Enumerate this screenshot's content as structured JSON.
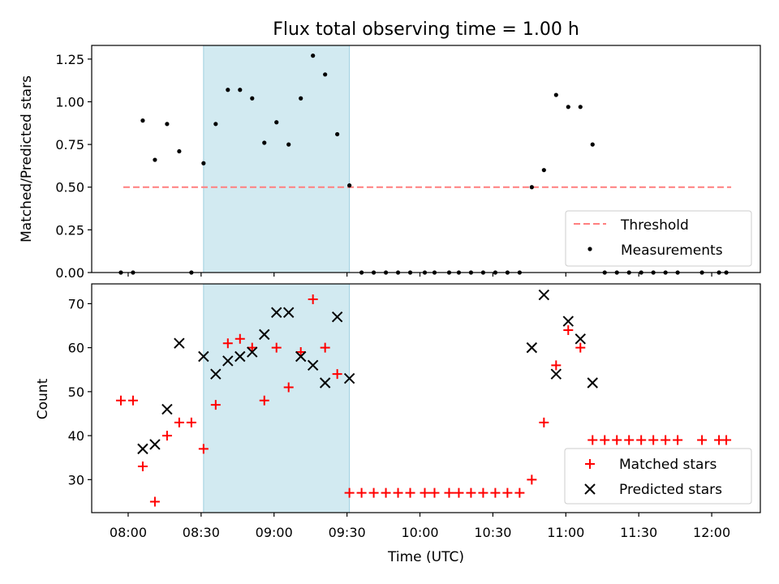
{
  "chart_data": [
    {
      "type": "scatter",
      "title": "Flux total observing time = 1.00 h",
      "xlabel": "",
      "ylabel": "Matched/Predicted stars",
      "ylim": [
        0,
        1.33
      ],
      "yticks": [
        "0.00",
        "0.25",
        "0.50",
        "0.75",
        "1.00",
        "1.25"
      ],
      "xlim": [
        "07:45",
        "12:20"
      ],
      "highlight_span": [
        "08:31",
        "09:31"
      ],
      "highlight_color": "#add8e6",
      "threshold": {
        "name": "Threshold",
        "value": 0.5,
        "from": "07:58",
        "to": "12:08",
        "color": "#ff7f7f"
      },
      "legend_position": "lower right",
      "series": [
        {
          "name": "Measurements",
          "color": "#000000",
          "marker": "dot",
          "points": [
            [
              "07:57",
              0.0
            ],
            [
              "08:02",
              0.0
            ],
            [
              "08:06",
              0.89
            ],
            [
              "08:11",
              0.66
            ],
            [
              "08:16",
              0.87
            ],
            [
              "08:21",
              0.71
            ],
            [
              "08:26",
              0.0
            ],
            [
              "08:31",
              0.64
            ],
            [
              "08:36",
              0.87
            ],
            [
              "08:41",
              1.07
            ],
            [
              "08:46",
              1.07
            ],
            [
              "08:51",
              1.02
            ],
            [
              "08:56",
              0.76
            ],
            [
              "09:01",
              0.88
            ],
            [
              "09:06",
              0.75
            ],
            [
              "09:11",
              1.02
            ],
            [
              "09:16",
              1.27
            ],
            [
              "09:21",
              1.16
            ],
            [
              "09:26",
              0.81
            ],
            [
              "09:31",
              0.51
            ],
            [
              "09:36",
              0.0
            ],
            [
              "09:41",
              0.0
            ],
            [
              "09:46",
              0.0
            ],
            [
              "09:51",
              0.0
            ],
            [
              "09:56",
              0.0
            ],
            [
              "10:02",
              0.0
            ],
            [
              "10:06",
              0.0
            ],
            [
              "10:12",
              0.0
            ],
            [
              "10:16",
              0.0
            ],
            [
              "10:21",
              0.0
            ],
            [
              "10:26",
              0.0
            ],
            [
              "10:31",
              0.0
            ],
            [
              "10:36",
              0.0
            ],
            [
              "10:41",
              0.0
            ],
            [
              "10:46",
              0.5
            ],
            [
              "10:51",
              0.6
            ],
            [
              "10:56",
              1.04
            ],
            [
              "11:01",
              0.97
            ],
            [
              "11:06",
              0.97
            ],
            [
              "11:11",
              0.75
            ],
            [
              "11:16",
              0.0
            ],
            [
              "11:21",
              0.0
            ],
            [
              "11:26",
              0.0
            ],
            [
              "11:31",
              0.0
            ],
            [
              "11:36",
              0.0
            ],
            [
              "11:41",
              0.0
            ],
            [
              "11:46",
              0.0
            ],
            [
              "11:56",
              0.0
            ],
            [
              "12:03",
              0.0
            ],
            [
              "12:06",
              0.0
            ]
          ]
        }
      ],
      "legend": [
        "Threshold",
        "Measurements"
      ]
    },
    {
      "type": "scatter",
      "title": "",
      "xlabel": "Time (UTC)",
      "ylabel": "Count",
      "ylim": [
        22.5,
        74.5
      ],
      "yticks": [
        "30",
        "40",
        "50",
        "60",
        "70"
      ],
      "xlim": [
        "07:45",
        "12:20"
      ],
      "xticks": [
        "08:00",
        "08:30",
        "09:00",
        "09:30",
        "10:00",
        "10:30",
        "11:00",
        "11:30",
        "12:00"
      ],
      "highlight_span": [
        "08:31",
        "09:31"
      ],
      "highlight_color": "#add8e6",
      "legend_position": "lower right",
      "series": [
        {
          "name": "Matched stars",
          "color": "#ff0000",
          "marker": "plus",
          "points": [
            [
              "07:57",
              48
            ],
            [
              "08:02",
              48
            ],
            [
              "08:06",
              33
            ],
            [
              "08:11",
              25
            ],
            [
              "08:16",
              40
            ],
            [
              "08:21",
              43
            ],
            [
              "08:26",
              43
            ],
            [
              "08:31",
              37
            ],
            [
              "08:36",
              47
            ],
            [
              "08:41",
              61
            ],
            [
              "08:46",
              62
            ],
            [
              "08:51",
              60
            ],
            [
              "08:56",
              48
            ],
            [
              "09:01",
              60
            ],
            [
              "09:06",
              51
            ],
            [
              "09:11",
              59
            ],
            [
              "09:16",
              71
            ],
            [
              "09:21",
              60
            ],
            [
              "09:26",
              54
            ],
            [
              "09:31",
              27
            ],
            [
              "09:36",
              27
            ],
            [
              "09:41",
              27
            ],
            [
              "09:46",
              27
            ],
            [
              "09:51",
              27
            ],
            [
              "09:56",
              27
            ],
            [
              "10:02",
              27
            ],
            [
              "10:06",
              27
            ],
            [
              "10:12",
              27
            ],
            [
              "10:16",
              27
            ],
            [
              "10:21",
              27
            ],
            [
              "10:26",
              27
            ],
            [
              "10:31",
              27
            ],
            [
              "10:36",
              27
            ],
            [
              "10:41",
              27
            ],
            [
              "10:46",
              30
            ],
            [
              "10:51",
              43
            ],
            [
              "10:56",
              56
            ],
            [
              "11:01",
              64
            ],
            [
              "11:06",
              60
            ],
            [
              "11:11",
              39
            ],
            [
              "11:16",
              39
            ],
            [
              "11:21",
              39
            ],
            [
              "11:26",
              39
            ],
            [
              "11:31",
              39
            ],
            [
              "11:36",
              39
            ],
            [
              "11:41",
              39
            ],
            [
              "11:46",
              39
            ],
            [
              "11:56",
              39
            ],
            [
              "12:03",
              39
            ],
            [
              "12:06",
              39
            ]
          ]
        },
        {
          "name": "Predicted stars",
          "color": "#000000",
          "marker": "x",
          "points": [
            [
              "08:06",
              37
            ],
            [
              "08:11",
              38
            ],
            [
              "08:16",
              46
            ],
            [
              "08:21",
              61
            ],
            [
              "08:31",
              58
            ],
            [
              "08:36",
              54
            ],
            [
              "08:41",
              57
            ],
            [
              "08:46",
              58
            ],
            [
              "08:51",
              59
            ],
            [
              "08:56",
              63
            ],
            [
              "09:01",
              68
            ],
            [
              "09:06",
              68
            ],
            [
              "09:11",
              58
            ],
            [
              "09:16",
              56
            ],
            [
              "09:21",
              52
            ],
            [
              "09:26",
              67
            ],
            [
              "09:31",
              53
            ],
            [
              "10:46",
              60
            ],
            [
              "10:51",
              72
            ],
            [
              "10:56",
              54
            ],
            [
              "11:01",
              66
            ],
            [
              "11:06",
              62
            ],
            [
              "11:11",
              52
            ]
          ]
        }
      ],
      "legend": [
        "Matched stars",
        "Predicted stars"
      ]
    }
  ]
}
